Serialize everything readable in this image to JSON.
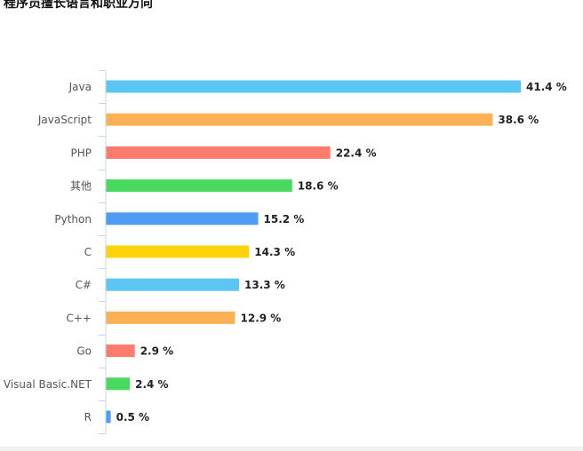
{
  "chart_data": {
    "type": "bar",
    "orientation": "horizontal",
    "title": "程序员擅长语言和职业方向",
    "categories": [
      "Java",
      "JavaScript",
      "PHP",
      "其他",
      "Python",
      "C",
      "C#",
      "C++",
      "Go",
      "Visual Basic.NET",
      "R"
    ],
    "values": [
      41.4,
      38.6,
      22.4,
      18.6,
      15.2,
      14.3,
      13.3,
      12.9,
      2.9,
      2.4,
      0.5
    ],
    "value_labels": [
      "41.4 %",
      "38.6 %",
      "22.4 %",
      "18.6 %",
      "15.2 %",
      "14.3 %",
      "13.3 %",
      "12.9 %",
      "2.9 %",
      "2.4 %",
      "0.5 %"
    ],
    "colors": [
      "#5bc6f3",
      "#fdb157",
      "#fc7b6d",
      "#4ad95f",
      "#4f9bf5",
      "#fdd40c",
      "#5bc6f3",
      "#fdb157",
      "#fc7b6d",
      "#4ad95f",
      "#4f9bf5"
    ],
    "axis_color": "#c7d6e6",
    "xlim": [
      0,
      41.4
    ],
    "grid": false,
    "legend": "none",
    "xlabel": "",
    "ylabel": ""
  }
}
